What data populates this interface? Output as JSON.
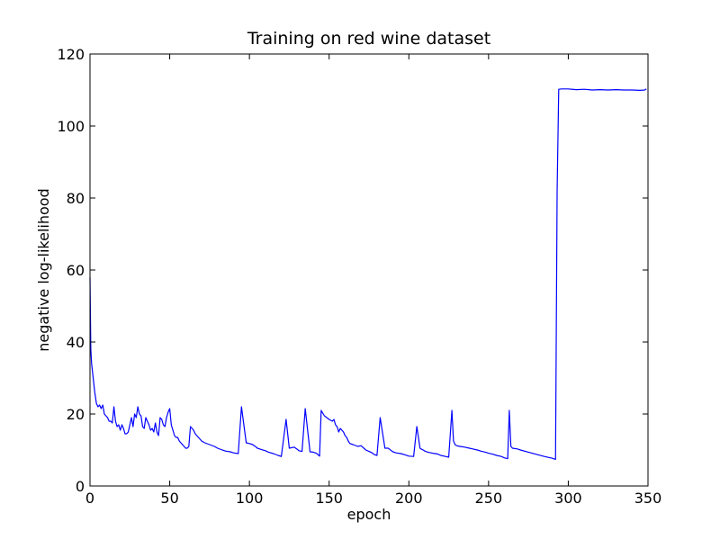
{
  "chart_data": {
    "type": "line",
    "title": "Training on red wine dataset",
    "xlabel": "epoch",
    "ylabel": "negative log-likelihood",
    "xlim": [
      0,
      350
    ],
    "ylim": [
      0,
      120
    ],
    "xticks": [
      "0",
      "50",
      "100",
      "150",
      "200",
      "250",
      "300",
      "350"
    ],
    "yticks": [
      "0",
      "20",
      "40",
      "60",
      "80",
      "100",
      "120"
    ],
    "grid": false,
    "legend": "none",
    "series": [
      {
        "color": "#0000ff",
        "x": [
          0,
          0.5,
          1,
          2,
          3,
          4,
          5,
          6,
          7,
          8,
          9,
          10,
          11,
          12,
          13,
          14,
          15,
          16,
          17,
          18,
          19,
          20,
          21,
          22,
          23,
          24,
          25,
          26,
          27,
          28,
          29,
          30,
          31,
          32,
          33,
          34,
          35,
          36,
          37,
          38,
          39,
          40,
          41,
          42,
          43,
          44,
          45,
          46,
          47,
          48,
          49,
          50,
          51,
          52,
          53,
          54,
          55,
          56,
          57,
          58,
          59,
          60,
          61,
          62,
          63,
          64,
          65,
          66,
          67,
          68,
          69,
          70,
          72,
          75,
          78,
          80,
          83,
          85,
          88,
          90,
          93,
          95,
          98,
          100,
          102,
          103,
          104,
          105,
          107,
          110,
          112,
          115,
          118,
          120,
          123,
          125,
          128,
          129,
          130,
          131,
          133,
          135,
          138,
          140,
          142,
          143,
          144,
          145,
          147,
          150,
          152,
          153,
          154,
          155,
          156,
          157,
          158,
          159,
          160,
          161,
          162,
          163,
          165,
          168,
          170,
          173,
          175,
          177,
          178,
          180,
          182,
          185,
          187,
          188,
          189,
          190,
          192,
          195,
          198,
          200,
          203,
          205,
          207,
          208,
          209,
          210,
          212,
          215,
          218,
          220,
          223,
          225,
          227,
          228,
          229,
          230,
          232,
          235,
          238,
          240,
          243,
          245,
          248,
          250,
          253,
          255,
          258,
          260,
          262,
          263,
          264,
          265,
          268,
          270,
          275,
          280,
          285,
          290,
          292,
          293,
          294,
          296,
          300,
          305,
          310,
          315,
          320,
          325,
          330,
          335,
          340,
          345,
          348,
          349
        ],
        "y": [
          58,
          38,
          34,
          30,
          26,
          23,
          22,
          22.5,
          21.5,
          22.5,
          20,
          19.5,
          19,
          18,
          18,
          17.5,
          22,
          18,
          16.5,
          17,
          15.5,
          17,
          16,
          14.5,
          14.5,
          15,
          17,
          19,
          16.5,
          20,
          19,
          22,
          20,
          19.5,
          16.5,
          16,
          19,
          18,
          17,
          15.5,
          16,
          15,
          17.5,
          15,
          14,
          19,
          18.5,
          17,
          16.5,
          19,
          20.5,
          21.5,
          17,
          15.5,
          14,
          13.5,
          13.5,
          12.5,
          12,
          11.5,
          11,
          10.5,
          10.5,
          11,
          16.5,
          16,
          15.5,
          14.5,
          14,
          13.5,
          13,
          12.5,
          12,
          11.5,
          11,
          10.5,
          10,
          9.7,
          9.5,
          9.2,
          9,
          22,
          12,
          11.8,
          11.5,
          11.2,
          10.9,
          10.5,
          10.2,
          9.8,
          9.4,
          9,
          8.5,
          8.2,
          18.5,
          10.5,
          10.8,
          10.5,
          10.2,
          9.8,
          9.6,
          21.5,
          9.5,
          9.4,
          9.1,
          8.7,
          8.3,
          21,
          19.5,
          18.5,
          18,
          18.5,
          17,
          16.5,
          15,
          16,
          15.5,
          15,
          14,
          13.5,
          12.5,
          11.8,
          11.5,
          11,
          11.2,
          10,
          9.6,
          9.2,
          8.8,
          8.5,
          19,
          10.5,
          10.5,
          10.2,
          9.8,
          9.5,
          9.2,
          9,
          8.6,
          8.3,
          8.2,
          16.5,
          10.5,
          10.2,
          10,
          9.7,
          9.4,
          9.1,
          8.9,
          8.5,
          8.2,
          8,
          21,
          12.5,
          11.5,
          11.2,
          11,
          10.8,
          10.5,
          10.3,
          10,
          9.7,
          9.4,
          9.1,
          8.8,
          8.5,
          8.2,
          7.8,
          7.6,
          21,
          11,
          10.5,
          10.3,
          10,
          9.4,
          8.8,
          8.2,
          7.7,
          7.4,
          82,
          110.2,
          110.3,
          110.3,
          110.1,
          110.2,
          110,
          110.1,
          110,
          110.1,
          110,
          110,
          109.9,
          110,
          110.3
        ]
      }
    ]
  }
}
